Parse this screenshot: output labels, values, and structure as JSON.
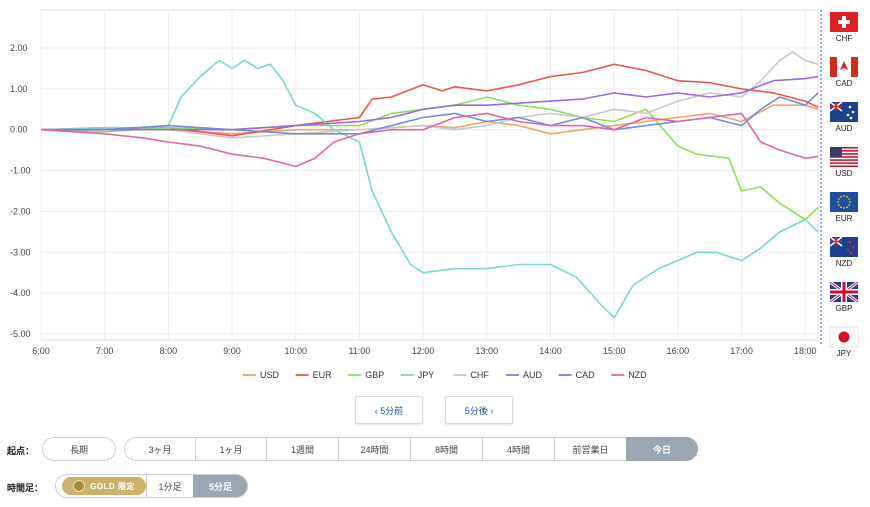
{
  "chart_data": {
    "type": "line",
    "y_ticks": [
      "2.00",
      "1.00",
      "0.00",
      "-1.00",
      "-2.00",
      "-3.00",
      "-4.00",
      "-5.00"
    ],
    "ylim": [
      -5,
      2.6
    ],
    "x_ticks": [
      "6:00",
      "7:00",
      "8:00",
      "9:00",
      "10:00",
      "11:00",
      "12:00",
      "13:00",
      "14:00",
      "15:00",
      "16:00",
      "17:00",
      "18:00"
    ],
    "x_range": [
      6.0,
      18.2
    ],
    "grid": true,
    "series": [
      {
        "name": "USD",
        "color": "#f4a261",
        "points": [
          [
            6,
            0
          ],
          [
            7,
            0.05
          ],
          [
            8,
            0
          ],
          [
            9,
            -0.1
          ],
          [
            10,
            0
          ],
          [
            11,
            0
          ],
          [
            11.5,
            0.05
          ],
          [
            12,
            0.1
          ],
          [
            12.5,
            0.05
          ],
          [
            13,
            0.2
          ],
          [
            13.5,
            0.1
          ],
          [
            14,
            -0.1
          ],
          [
            14.5,
            0
          ],
          [
            15,
            0.1
          ],
          [
            15.5,
            0.2
          ],
          [
            16,
            0.3
          ],
          [
            16.5,
            0.4
          ],
          [
            17,
            0.2
          ],
          [
            17.5,
            0.6
          ],
          [
            18,
            0.6
          ],
          [
            18.2,
            0.5
          ]
        ]
      },
      {
        "name": "EUR",
        "color": "#e8584b",
        "points": [
          [
            6,
            0
          ],
          [
            7,
            0
          ],
          [
            8,
            0.05
          ],
          [
            9,
            -0.15
          ],
          [
            10,
            0.1
          ],
          [
            11,
            0.3
          ],
          [
            11.2,
            0.75
          ],
          [
            11.5,
            0.8
          ],
          [
            12,
            1.1
          ],
          [
            12.3,
            0.95
          ],
          [
            12.5,
            1.05
          ],
          [
            13,
            0.95
          ],
          [
            13.5,
            1.1
          ],
          [
            14,
            1.3
          ],
          [
            14.5,
            1.4
          ],
          [
            15,
            1.6
          ],
          [
            15.5,
            1.45
          ],
          [
            16,
            1.2
          ],
          [
            16.5,
            1.15
          ],
          [
            17,
            1.0
          ],
          [
            17.5,
            0.9
          ],
          [
            18,
            0.7
          ],
          [
            18.2,
            0.55
          ]
        ]
      },
      {
        "name": "GBP",
        "color": "#8be05a",
        "points": [
          [
            6,
            0
          ],
          [
            7,
            -0.05
          ],
          [
            8,
            0.05
          ],
          [
            9,
            0
          ],
          [
            10,
            0.1
          ],
          [
            11,
            0.1
          ],
          [
            11.5,
            0.4
          ],
          [
            12,
            0.5
          ],
          [
            12.5,
            0.6
          ],
          [
            13,
            0.8
          ],
          [
            13.5,
            0.6
          ],
          [
            14,
            0.5
          ],
          [
            14.5,
            0.3
          ],
          [
            15,
            0.2
          ],
          [
            15.5,
            0.5
          ],
          [
            16,
            -0.4
          ],
          [
            16.3,
            -0.6
          ],
          [
            16.8,
            -0.7
          ],
          [
            17,
            -1.5
          ],
          [
            17.3,
            -1.4
          ],
          [
            17.6,
            -1.8
          ],
          [
            18,
            -2.2
          ],
          [
            18.2,
            -1.9
          ]
        ]
      },
      {
        "name": "JPY",
        "color": "#79d7d2",
        "points": [
          [
            6,
            0
          ],
          [
            7,
            0.05
          ],
          [
            7.6,
            0.05
          ],
          [
            8,
            0.1
          ],
          [
            8.2,
            0.8
          ],
          [
            8.5,
            1.3
          ],
          [
            8.8,
            1.7
          ],
          [
            9,
            1.5
          ],
          [
            9.2,
            1.7
          ],
          [
            9.4,
            1.5
          ],
          [
            9.6,
            1.6
          ],
          [
            9.8,
            1.2
          ],
          [
            10,
            0.6
          ],
          [
            10.3,
            0.4
          ],
          [
            10.6,
            0
          ],
          [
            11,
            -0.3
          ],
          [
            11.2,
            -1.5
          ],
          [
            11.5,
            -2.5
          ],
          [
            11.8,
            -3.3
          ],
          [
            12,
            -3.5
          ],
          [
            12.5,
            -3.4
          ],
          [
            13,
            -3.4
          ],
          [
            13.5,
            -3.3
          ],
          [
            14,
            -3.3
          ],
          [
            14.4,
            -3.6
          ],
          [
            14.8,
            -4.3
          ],
          [
            15,
            -4.6
          ],
          [
            15.3,
            -3.8
          ],
          [
            15.7,
            -3.4
          ],
          [
            16,
            -3.2
          ],
          [
            16.3,
            -3
          ],
          [
            16.6,
            -3.0
          ],
          [
            17,
            -3.2
          ],
          [
            17.3,
            -2.9
          ],
          [
            17.6,
            -2.5
          ],
          [
            18,
            -2.2
          ],
          [
            18.2,
            -2.5
          ]
        ]
      },
      {
        "name": "CHF",
        "color": "#c9c9c9",
        "points": [
          [
            6,
            0
          ],
          [
            7,
            0
          ],
          [
            8,
            0
          ],
          [
            9,
            -0.2
          ],
          [
            10,
            -0.1
          ],
          [
            11,
            0
          ],
          [
            11.5,
            0.05
          ],
          [
            12,
            0.1
          ],
          [
            12.5,
            0
          ],
          [
            13,
            0.1
          ],
          [
            13.5,
            0.3
          ],
          [
            14,
            0.4
          ],
          [
            14.5,
            0.3
          ],
          [
            15,
            0.5
          ],
          [
            15.5,
            0.4
          ],
          [
            16,
            0.7
          ],
          [
            16.5,
            0.9
          ],
          [
            17,
            0.8
          ],
          [
            17.3,
            1.2
          ],
          [
            17.6,
            1.7
          ],
          [
            17.8,
            1.9
          ],
          [
            18,
            1.7
          ],
          [
            18.2,
            1.6
          ]
        ]
      },
      {
        "name": "AUD",
        "color": "#6f8fd6",
        "points": [
          [
            6,
            0
          ],
          [
            7,
            0
          ],
          [
            8,
            0.1
          ],
          [
            9,
            0
          ],
          [
            10,
            -0.1
          ],
          [
            11,
            -0.1
          ],
          [
            11.5,
            0.1
          ],
          [
            12,
            0.3
          ],
          [
            12.5,
            0.4
          ],
          [
            13,
            0.2
          ],
          [
            13.5,
            0.3
          ],
          [
            14,
            0.1
          ],
          [
            14.5,
            0.3
          ],
          [
            15,
            0
          ],
          [
            15.5,
            0.1
          ],
          [
            16,
            0.2
          ],
          [
            16.5,
            0.3
          ],
          [
            17,
            0.1
          ],
          [
            17.3,
            0.5
          ],
          [
            17.6,
            0.8
          ],
          [
            18,
            0.6
          ],
          [
            18.2,
            0.9
          ]
        ]
      },
      {
        "name": "CAD",
        "color": "#9a6ae0",
        "points": [
          [
            6,
            0
          ],
          [
            7,
            0
          ],
          [
            8,
            0
          ],
          [
            9,
            0
          ],
          [
            10,
            0.1
          ],
          [
            11,
            0.2
          ],
          [
            11.5,
            0.3
          ],
          [
            12,
            0.5
          ],
          [
            12.5,
            0.6
          ],
          [
            13,
            0.6
          ],
          [
            13.5,
            0.65
          ],
          [
            14,
            0.7
          ],
          [
            14.5,
            0.75
          ],
          [
            15,
            0.9
          ],
          [
            15.5,
            0.8
          ],
          [
            16,
            0.9
          ],
          [
            16.5,
            0.8
          ],
          [
            17,
            0.9
          ],
          [
            17.5,
            1.2
          ],
          [
            18,
            1.25
          ],
          [
            18.2,
            1.3
          ]
        ]
      },
      {
        "name": "NZD",
        "color": "#e066a8",
        "points": [
          [
            6,
            0
          ],
          [
            7,
            -0.1
          ],
          [
            7.6,
            -0.2
          ],
          [
            8,
            -0.3
          ],
          [
            8.5,
            -0.4
          ],
          [
            9,
            -0.6
          ],
          [
            9.5,
            -0.7
          ],
          [
            10,
            -0.9
          ],
          [
            10.3,
            -0.7
          ],
          [
            10.6,
            -0.3
          ],
          [
            11,
            -0.1
          ],
          [
            11.5,
            0
          ],
          [
            12,
            0
          ],
          [
            12.5,
            0.3
          ],
          [
            13,
            0.4
          ],
          [
            13.5,
            0.2
          ],
          [
            14,
            0.1
          ],
          [
            14.5,
            0.1
          ],
          [
            15,
            0
          ],
          [
            15.5,
            0.3
          ],
          [
            16,
            0.2
          ],
          [
            16.5,
            0.3
          ],
          [
            17,
            0.4
          ],
          [
            17.3,
            -0.3
          ],
          [
            17.6,
            -0.5
          ],
          [
            18,
            -0.7
          ],
          [
            18.2,
            -0.65
          ]
        ]
      }
    ]
  },
  "flags": [
    {
      "code": "CHF",
      "icon": "swiss-flag-icon"
    },
    {
      "code": "CAD",
      "icon": "canada-flag-icon"
    },
    {
      "code": "AUD",
      "icon": "australia-flag-icon"
    },
    {
      "code": "USD",
      "icon": "usa-flag-icon"
    },
    {
      "code": "EUR",
      "icon": "eu-flag-icon"
    },
    {
      "code": "NZD",
      "icon": "newzealand-flag-icon"
    },
    {
      "code": "GBP",
      "icon": "uk-flag-icon"
    },
    {
      "code": "JPY",
      "icon": "japan-flag-icon"
    }
  ],
  "nav": {
    "prev_label": "‹ 5分前",
    "next_label": "5分後 ›"
  },
  "start_point": {
    "label": "起点：",
    "options": [
      "長期",
      "3ヶ月",
      "1ヶ月",
      "1週間",
      "24時間",
      "8時間",
      "4時間",
      "前営業日",
      "今日"
    ],
    "active": "今日"
  },
  "timeframe": {
    "label": "時間足：",
    "gold_label": "GOLD 限定",
    "options": [
      "1分足",
      "5分足"
    ],
    "active": "5分足"
  },
  "colors": {
    "active_bg": "#9aa7b3",
    "gold": "#cdb06a",
    "link": "#1e4fa3"
  }
}
